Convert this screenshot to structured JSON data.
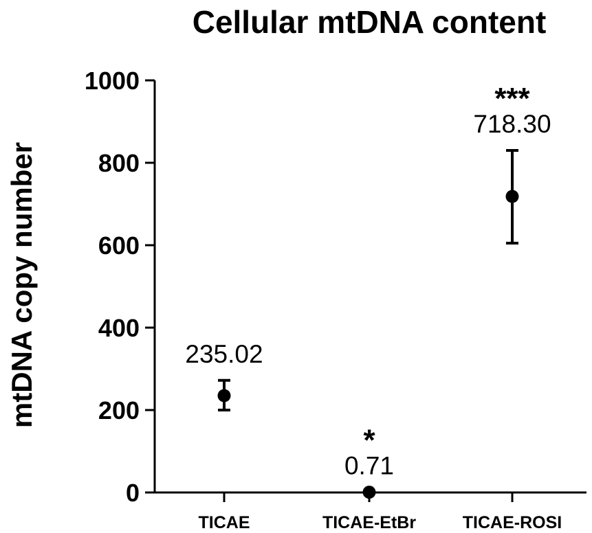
{
  "chart_data": {
    "type": "scatter",
    "title": "Cellular mtDNA content",
    "xlabel": "",
    "ylabel": "mtDNA copy number",
    "ylim": [
      0,
      1000
    ],
    "yticks": [
      0,
      200,
      400,
      600,
      800,
      1000
    ],
    "categories": [
      "TICAE",
      "TICAE-EtBr",
      "TICAE-ROSI"
    ],
    "values": [
      235.02,
      0.71,
      718.3
    ],
    "errors": [
      [
        200,
        272
      ],
      [
        0.71,
        0.71
      ],
      [
        605,
        830
      ]
    ],
    "value_labels": [
      "235.02",
      "0.71",
      "718.30"
    ],
    "significance": [
      "",
      "*",
      "***"
    ],
    "grid": false,
    "legend": "none"
  }
}
